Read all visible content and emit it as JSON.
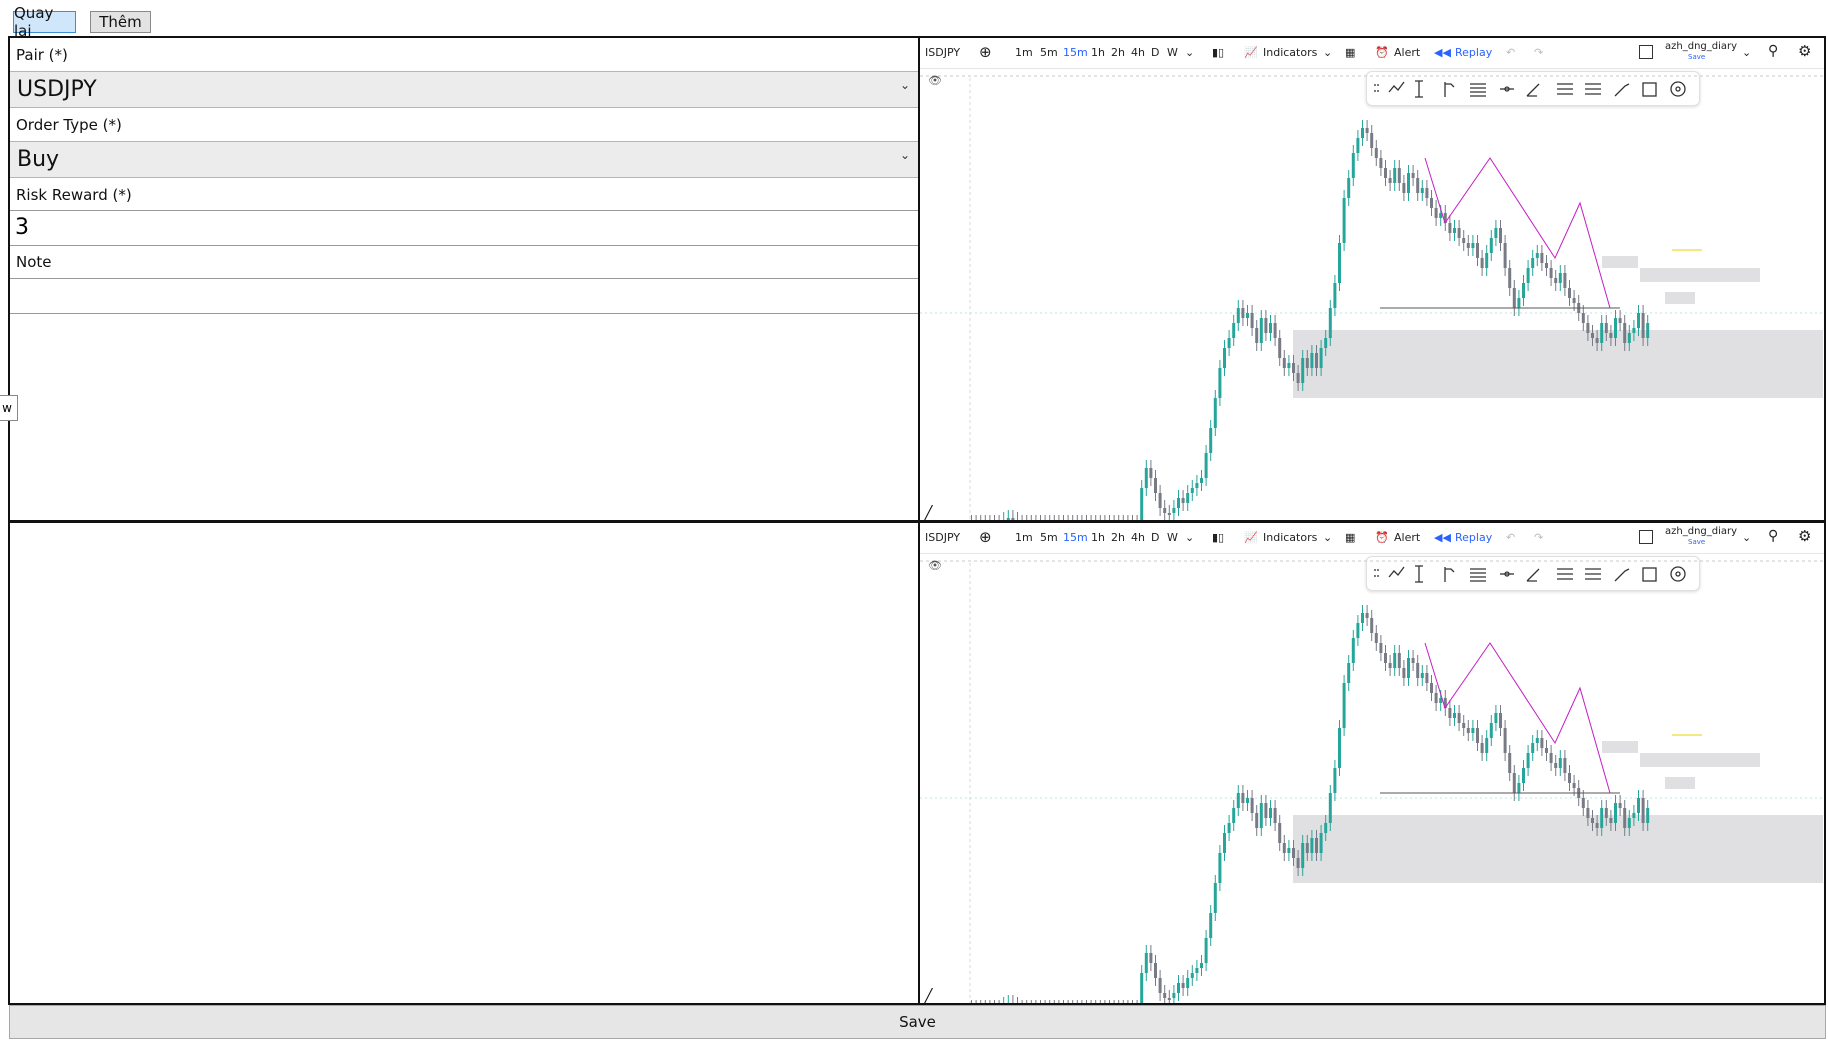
{
  "top_buttons": {
    "back_label": "Quay lại",
    "add_label": "Thêm"
  },
  "form": {
    "pair_label": "Pair (*)",
    "pair_value": "USDJPY",
    "order_type_label": "Order Type (*)",
    "order_type_value": "Buy",
    "risk_reward_label": "Risk Reward (*)",
    "risk_reward_value": "3",
    "note_label": "Note",
    "note_value": ""
  },
  "tooltip_fragment": "w",
  "chart_toolbar": {
    "symbol": "ISDJPY",
    "timeframes": [
      "1m",
      "5m",
      "15m",
      "1h",
      "2h",
      "4h",
      "D",
      "W"
    ],
    "active_timeframe": "15m",
    "indicators_label": "Indicators",
    "alert_label": "Alert",
    "replay_label": "Replay",
    "layout_name": "azh_dng_diary",
    "layout_sub": "Save"
  },
  "colors": {
    "up_candle": "#26a69a",
    "down_candle": "#787b86",
    "zone": "#e0e0e3",
    "pattern": "#c41dc4",
    "accent": "#2962ff"
  },
  "save_label": "Save"
}
